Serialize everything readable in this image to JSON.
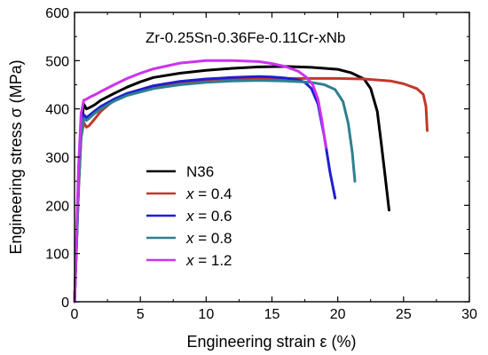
{
  "chart_data": {
    "type": "line",
    "title": "Zr-0.25Sn-0.36Fe-0.11Cr-xNb",
    "xlabel": "Engineering strain ε  (%)",
    "ylabel": "Engineering stress σ (MPa)",
    "xlim": [
      0,
      30
    ],
    "ylim": [
      0,
      600
    ],
    "xticks": [
      "0",
      "5",
      "10",
      "15",
      "20",
      "25",
      "30"
    ],
    "yticks": [
      "0",
      "100",
      "200",
      "300",
      "400",
      "500",
      "600"
    ],
    "grid": false,
    "legend_position": "center-left",
    "series": [
      {
        "name": "N36",
        "color": "#000000",
        "x": [
          0,
          0.3,
          0.5,
          0.7,
          0.9,
          1.1,
          1.5,
          2,
          3,
          4,
          5,
          6,
          8,
          10,
          12,
          14,
          16,
          17,
          18,
          20,
          21,
          22,
          22.5,
          23,
          23.3,
          23.6,
          23.9
        ],
        "y": [
          0,
          250,
          360,
          410,
          400,
          402,
          408,
          418,
          432,
          445,
          456,
          465,
          474,
          480,
          484,
          487,
          488,
          487,
          486,
          482,
          475,
          462,
          442,
          395,
          330,
          260,
          190
        ]
      },
      {
        "name": "x = 0.4",
        "color": "#c0392b",
        "x": [
          0,
          0.3,
          0.5,
          0.7,
          0.9,
          1.1,
          1.5,
          2,
          3,
          4,
          6,
          8,
          10,
          12,
          14,
          16,
          18,
          20,
          22,
          24,
          25,
          26,
          26.5,
          26.7,
          26.8
        ],
        "y": [
          0,
          230,
          340,
          372,
          362,
          365,
          378,
          395,
          418,
          432,
          447,
          455,
          459,
          461,
          462,
          463,
          463,
          463,
          462,
          458,
          452,
          442,
          430,
          405,
          355
        ]
      },
      {
        "name": "x = 0.6",
        "color": "#1f1fd0",
        "x": [
          0,
          0.3,
          0.5,
          0.7,
          0.9,
          1.1,
          1.5,
          2,
          3,
          4,
          6,
          8,
          10,
          12,
          14,
          15,
          16,
          17,
          17.5,
          18,
          18.5,
          19,
          19.4,
          19.8
        ],
        "y": [
          0,
          240,
          350,
          388,
          382,
          386,
          395,
          405,
          420,
          432,
          448,
          457,
          462,
          465,
          467,
          466,
          464,
          460,
          455,
          442,
          410,
          340,
          270,
          215
        ]
      },
      {
        "name": "x = 0.8",
        "color": "#2f7f8f",
        "x": [
          0,
          0.3,
          0.5,
          0.7,
          0.9,
          1.1,
          1.5,
          2,
          3,
          4,
          6,
          8,
          10,
          12,
          14,
          16,
          18,
          19,
          19.8,
          20.4,
          20.8,
          21.1,
          21.3
        ],
        "y": [
          0,
          235,
          345,
          380,
          376,
          380,
          390,
          400,
          416,
          428,
          442,
          450,
          455,
          458,
          459,
          458,
          455,
          450,
          440,
          415,
          370,
          310,
          250
        ]
      },
      {
        "name": "x = 1.2",
        "color": "#cc33ee",
        "x": [
          0,
          0.3,
          0.5,
          0.7,
          0.9,
          1.2,
          1.6,
          2,
          3,
          4,
          5,
          6,
          8,
          10,
          12,
          14,
          15,
          16,
          17,
          17.6,
          18.1,
          18.5,
          18.8,
          19.1
        ],
        "y": [
          0,
          280,
          390,
          418,
          420,
          425,
          430,
          436,
          450,
          463,
          474,
          483,
          495,
          500,
          500,
          498,
          494,
          488,
          478,
          466,
          450,
          420,
          375,
          320
        ]
      }
    ]
  }
}
